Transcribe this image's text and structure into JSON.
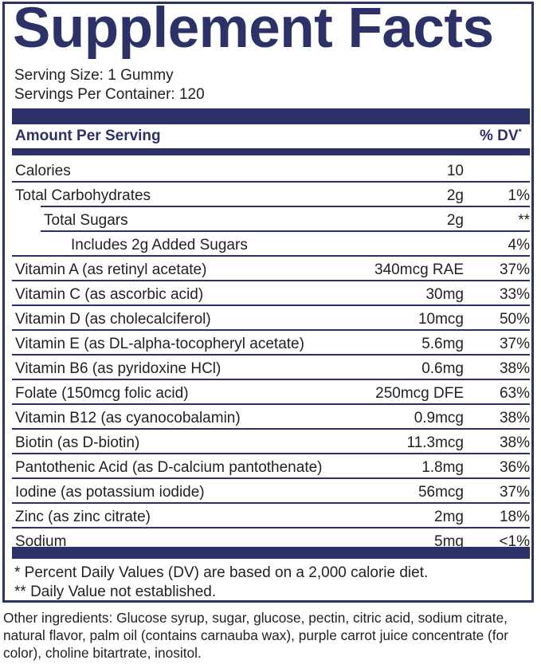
{
  "title": "Supplement Facts",
  "serving_size": "Serving Size: 1 Gummy",
  "servings_per_container": "Servings Per Container: 120",
  "header": {
    "amount_label": "Amount Per Serving",
    "dv_label": "% DV",
    "dv_mark": "*"
  },
  "rows": [
    {
      "name": "Calories",
      "amount": "10",
      "dv": "",
      "indent": 0
    },
    {
      "name": "Total Carbohydrates",
      "amount": "2g",
      "dv": "1%",
      "indent": 0
    },
    {
      "name": "Total Sugars",
      "amount": "2g",
      "dv": "**",
      "indent": 1
    },
    {
      "name": "Includes 2g Added Sugars",
      "amount": "",
      "dv": "4%",
      "indent": 2
    },
    {
      "name": "Vitamin A (as retinyl acetate)",
      "amount": "340mcg RAE",
      "dv": "37%",
      "indent": 0
    },
    {
      "name": "Vitamin C (as ascorbic acid)",
      "amount": "30mg",
      "dv": "33%",
      "indent": 0
    },
    {
      "name": "Vitamin D (as cholecalciferol)",
      "amount": "10mcg",
      "dv": "50%",
      "indent": 0
    },
    {
      "name": "Vitamin E (as DL-alpha-tocopheryl acetate)",
      "amount": "5.6mg",
      "dv": "37%",
      "indent": 0
    },
    {
      "name": "Vitamin B6 (as pyridoxine HCl)",
      "amount": "0.6mg",
      "dv": "38%",
      "indent": 0
    },
    {
      "name": "Folate (150mcg folic acid)",
      "amount": "250mcg DFE",
      "dv": "63%",
      "indent": 0
    },
    {
      "name": "Vitamin B12 (as cyanocobalamin)",
      "amount": "0.9mcg",
      "dv": "38%",
      "indent": 0
    },
    {
      "name": "Biotin (as D-biotin)",
      "amount": "11.3mcg",
      "dv": "38%",
      "indent": 0
    },
    {
      "name": "Pantothenic Acid (as D-calcium pantothenate)",
      "amount": "1.8mg",
      "dv": "36%",
      "indent": 0
    },
    {
      "name": "Iodine (as potassium iodide)",
      "amount": "56mcg",
      "dv": "37%",
      "indent": 0
    },
    {
      "name": "Zinc (as zinc citrate)",
      "amount": "2mg",
      "dv": "18%",
      "indent": 0
    },
    {
      "name": "Sodium",
      "amount": "5mg",
      "dv": "<1%",
      "indent": 0
    }
  ],
  "footnote_1": "* Percent Daily Values (DV) are based on a 2,000 calorie diet.",
  "footnote_2": "** Daily Value not established.",
  "other_ingredients": "Other ingredients: Glucose syrup, sugar, glucose, pectin, citric acid, sodium citrate, natural flavor, palm oil (contains carnauba wax), purple carrot juice concentrate (for color), choline bitartrate, inositol.",
  "colors": {
    "navy": "#2c3168",
    "text": "#222222"
  }
}
